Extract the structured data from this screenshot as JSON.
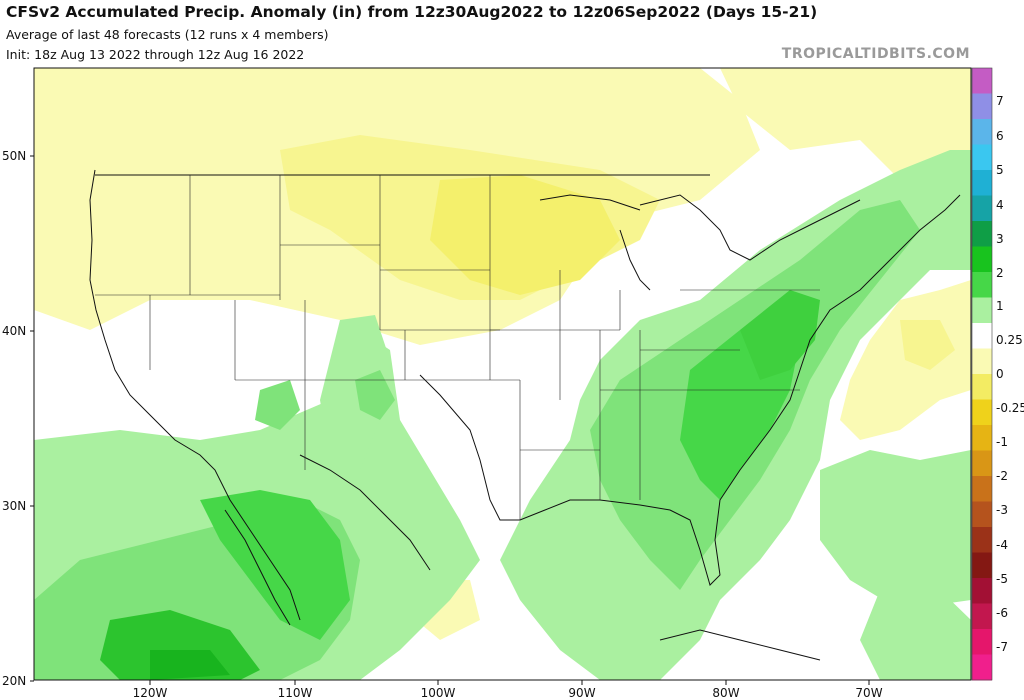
{
  "header": {
    "title": "CFSv2 Accumulated Precip. Anomaly (in) from 12z30Aug2022 to 12z06Sep2022 (Days 15-21)",
    "subtitle": "Average of last 48 forecasts (12 runs x 4 members)",
    "init": "Init: 18z Aug 13 2022 through 12z Aug 16 2022",
    "credit": "TROPICALTIDBITS.COM"
  },
  "map": {
    "lat_labels": [
      "50N",
      "40N",
      "30N",
      "20N"
    ],
    "lon_labels": [
      "120W",
      "110W",
      "100W",
      "90W",
      "80W",
      "70W"
    ]
  },
  "colorbar": {
    "labels": [
      "7",
      "6",
      "5",
      "4",
      "3",
      "2",
      "1",
      "0.25",
      "0",
      "-0.25",
      "-1",
      "-2",
      "-3",
      "-4",
      "-5",
      "-6",
      "-7"
    ],
    "colors": [
      "#c45cc4",
      "#8f8fe6",
      "#5bb5ea",
      "#3ac7f0",
      "#1fb0d4",
      "#16a3a6",
      "#0f9e46",
      "#18c31e",
      "#46d748",
      "#aaf0a0",
      "#ffffff",
      "#fafab4",
      "#f3ec63",
      "#efd21b",
      "#e6b414",
      "#d99616",
      "#c9721a",
      "#b5531d",
      "#9b3218",
      "#841813",
      "#a21034",
      "#c2174e",
      "#e5166b",
      "#f01f8c"
    ]
  }
}
